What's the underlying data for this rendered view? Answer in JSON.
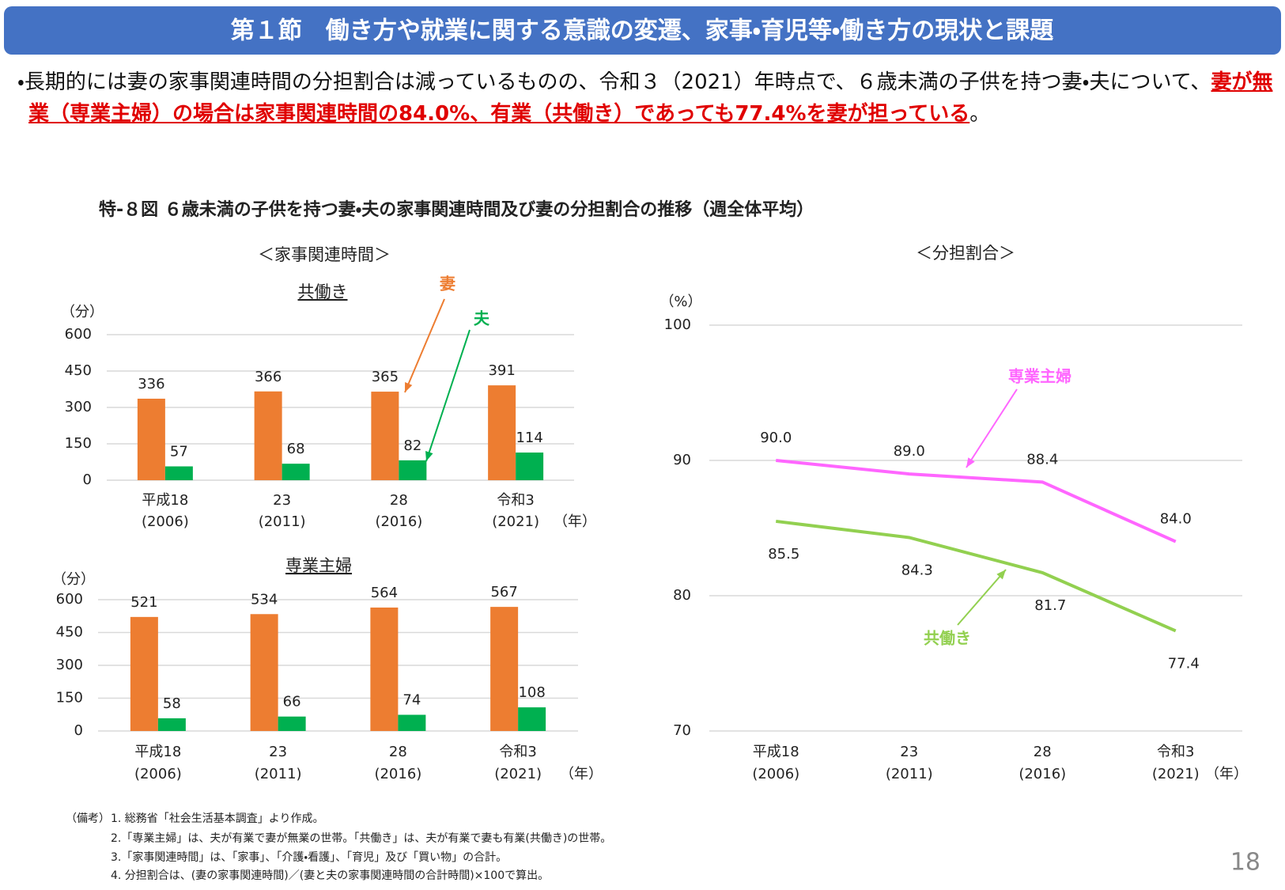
{
  "header": {
    "title": "第１節　働き方や就業に関する意識の変遷、家事・育児等・働き方の現状と課題"
  },
  "summary": {
    "text_before": "・長期的には妻の家事関連時間の分担割合は減っているものの、令和３（2021）年時点で、６歳未満の子供を持つ妻・夫について、",
    "highlight": "妻が無業（専業主婦）の場合は家事関連時間の84.0%、有業（共働き）であっても77.4%を妻が担っている",
    "text_after": "。"
  },
  "figure_title": "特-８図 ６歳未満の子供を持つ妻・夫の家事関連時間及び妻の分担割合の推移（週全体平均）",
  "panel_titles": [
    "＜家事関連時間＞",
    "＜分担割合＞"
  ],
  "chart_data": [
    {
      "type": "bar",
      "title": "共働き",
      "y_unit": "（分）",
      "x_unit": "（年）",
      "categories": [
        "平成18",
        "23",
        "28",
        "令和3"
      ],
      "category_years": [
        "(2006)",
        "(2011)",
        "(2016)",
        "(2021)"
      ],
      "series": [
        {
          "name": "妻",
          "color": "#ed7d31",
          "values": [
            336,
            366,
            365,
            391
          ]
        },
        {
          "name": "夫",
          "color": "#00b050",
          "values": [
            57,
            68,
            82,
            114
          ]
        }
      ],
      "ylim": [
        0,
        600
      ],
      "yticks": [
        0,
        150,
        300,
        450,
        600
      ],
      "grid": true
    },
    {
      "type": "bar",
      "title": "専業主婦",
      "y_unit": "（分）",
      "x_unit": "（年）",
      "categories": [
        "平成18",
        "23",
        "28",
        "令和3"
      ],
      "category_years": [
        "(2006)",
        "(2011)",
        "(2016)",
        "(2021)"
      ],
      "series": [
        {
          "color": "#ed7d31",
          "values": [
            521,
            534,
            564,
            567
          ]
        },
        {
          "color": "#00b050",
          "values": [
            58,
            66,
            74,
            108
          ]
        }
      ],
      "ylim": [
        0,
        600
      ],
      "yticks": [
        0,
        150,
        300,
        450,
        600
      ],
      "grid": true
    },
    {
      "type": "line",
      "y_unit": "（%）",
      "x_unit": "（年）",
      "categories": [
        "平成18",
        "23",
        "28",
        "令和3"
      ],
      "category_years": [
        "(2006)",
        "(2011)",
        "(2016)",
        "(2021)"
      ],
      "series": [
        {
          "name": "専業主婦",
          "color": "#ff66ff",
          "values": [
            90.0,
            89.0,
            88.4,
            84.0
          ],
          "value_labels": [
            "90.0",
            "89.0",
            "88.4",
            "84.0"
          ]
        },
        {
          "name": "共働き",
          "color": "#92d050",
          "values": [
            85.5,
            84.3,
            81.7,
            77.4
          ],
          "value_labels": [
            "85.5",
            "84.3",
            "81.7",
            "77.4"
          ]
        }
      ],
      "ylim": [
        70,
        100
      ],
      "yticks": [
        70,
        80,
        90,
        100
      ],
      "grid": true
    }
  ],
  "notes": {
    "label": "（備考）",
    "items": [
      "1. 総務省「社会生活基本調査」より作成。",
      "2.「専業主婦」は、夫が有業で妻が無業の世帯。「共働き」は、夫が有業で妻も有業(共働き)の世帯。",
      "3.「家事関連時間」は、「家事」、「介護・看護」、「育児」及び「買い物」の合計。",
      "4. 分担割合は、(妻の家事関連時間)／(妻と夫の家事関連時間の合計時間)×100で算出。"
    ]
  },
  "page_number": "18"
}
